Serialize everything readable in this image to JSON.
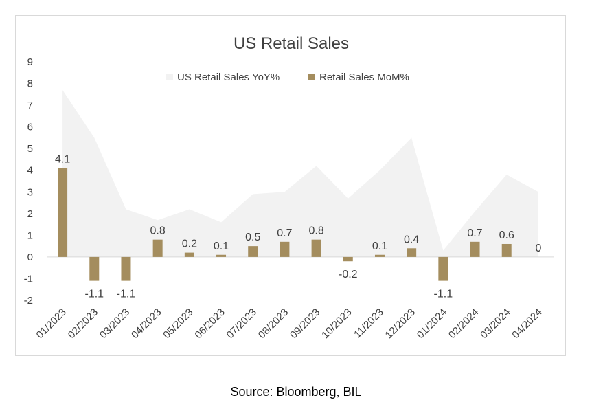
{
  "chart_data": {
    "type": "bar",
    "title": "US Retail Sales",
    "categories": [
      "01/2023",
      "02/2023",
      "03/2023",
      "04/2023",
      "05/2023",
      "06/2023",
      "07/2023",
      "08/2023",
      "09/2023",
      "10/2023",
      "11/2023",
      "12/2023",
      "01/2024",
      "02/2024",
      "03/2024",
      "04/2024"
    ],
    "series": [
      {
        "name": "US Retail Sales YoY%",
        "type": "area",
        "color": "#f2f2f2",
        "values": [
          7.7,
          5.5,
          2.2,
          1.7,
          2.2,
          1.6,
          2.9,
          3.0,
          4.2,
          2.7,
          4.0,
          5.5,
          0.3,
          2.1,
          3.8,
          3.0
        ]
      },
      {
        "name": "Retail Sales MoM%",
        "type": "bar",
        "color": "#a48d5e",
        "values": [
          4.1,
          -1.1,
          -1.1,
          0.8,
          0.2,
          0.1,
          0.5,
          0.7,
          0.8,
          -0.2,
          0.1,
          0.4,
          -1.1,
          0.7,
          0.6,
          0
        ],
        "labels": [
          "4.1",
          "-1.1",
          "-1.1",
          "0.8",
          "0.2",
          "0.1",
          "0.5",
          "0.7",
          "0.8",
          "-0.2",
          "0.1",
          "0.4",
          "-1.1",
          "0.7",
          "0.6",
          "0"
        ]
      }
    ],
    "ylim": [
      -2,
      9
    ],
    "yticks": [
      "-2",
      "-1",
      "0",
      "1",
      "2",
      "3",
      "4",
      "5",
      "6",
      "7",
      "8",
      "9"
    ],
    "grid": false,
    "legend": "top-center"
  },
  "source": "Source: Bloomberg, BIL"
}
